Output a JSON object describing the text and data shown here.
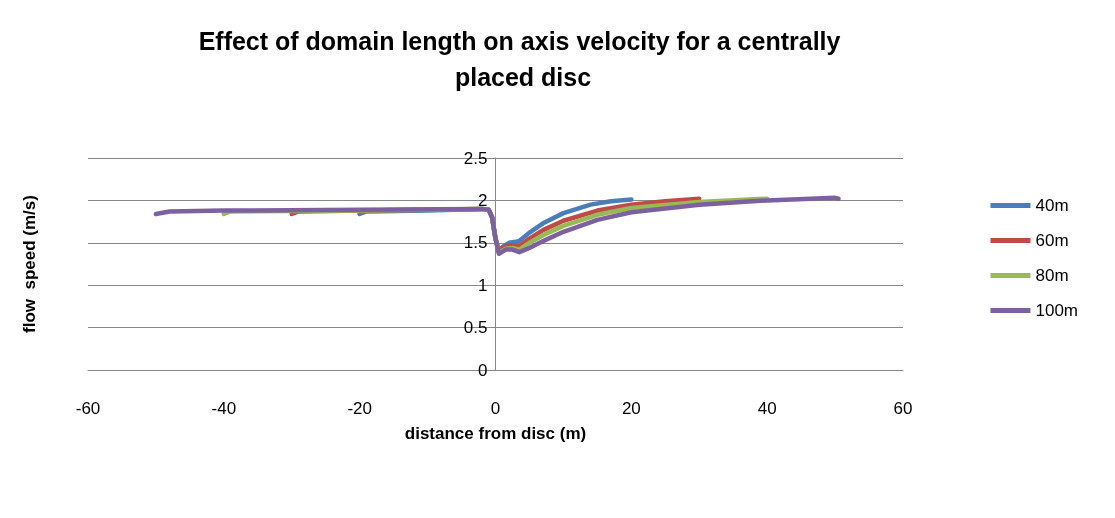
{
  "chart_data": {
    "type": "line",
    "title": "Effect of domain length on axis velocity for a centrally placed disc",
    "xlabel": "distance from disc (m)",
    "ylabel": "flow  speed (m/s)",
    "xlim": [
      -60,
      60
    ],
    "xticks": [
      -60,
      -40,
      -20,
      0,
      20,
      40,
      60
    ],
    "ylim": [
      0,
      2.5
    ],
    "yticks": [
      0,
      0.5,
      1,
      1.5,
      2,
      2.5
    ],
    "grid": "y",
    "legend": "right",
    "marker": "none",
    "line_style": "solid",
    "series": [
      {
        "name": "40m",
        "color": "#4a7ebb",
        "x": [
          -20,
          -19,
          -10,
          -2,
          -1,
          -0.5,
          0,
          0.5,
          1,
          2,
          3.5,
          5,
          7,
          10,
          14,
          17,
          20
        ],
        "values": [
          1.84,
          1.87,
          1.88,
          1.9,
          1.89,
          1.8,
          1.55,
          1.4,
          1.45,
          1.5,
          1.52,
          1.62,
          1.73,
          1.85,
          1.95,
          1.99,
          2.01
        ]
      },
      {
        "name": "60m",
        "color": "#be4b48",
        "x": [
          -30,
          -29,
          -20,
          -10,
          -2,
          -1,
          -0.5,
          0,
          0.5,
          1,
          2,
          3.5,
          5,
          7,
          10,
          15,
          20,
          25,
          30
        ],
        "values": [
          1.84,
          1.87,
          1.88,
          1.89,
          1.9,
          1.89,
          1.8,
          1.55,
          1.39,
          1.44,
          1.47,
          1.46,
          1.55,
          1.65,
          1.76,
          1.88,
          1.95,
          1.99,
          2.02
        ]
      },
      {
        "name": "80m",
        "color": "#98b954",
        "x": [
          -40,
          -39,
          -20,
          -10,
          -2,
          -1,
          -0.5,
          0,
          0.5,
          1.5,
          2.5,
          3.5,
          5,
          7,
          10,
          15,
          20,
          30,
          40
        ],
        "values": [
          1.84,
          1.87,
          1.88,
          1.89,
          1.9,
          1.89,
          1.8,
          1.55,
          1.38,
          1.43,
          1.44,
          1.42,
          1.5,
          1.59,
          1.7,
          1.83,
          1.91,
          1.98,
          2.02
        ]
      },
      {
        "name": "100m",
        "color": "#7d60a0",
        "x": [
          -50,
          -48,
          -40,
          -20,
          -2,
          -1,
          -0.5,
          0,
          0.5,
          1.5,
          2.5,
          3.5,
          5,
          7,
          10,
          15,
          20,
          30,
          40,
          50,
          50.5
        ],
        "values": [
          1.84,
          1.87,
          1.88,
          1.89,
          1.9,
          1.89,
          1.8,
          1.55,
          1.37,
          1.42,
          1.42,
          1.39,
          1.44,
          1.52,
          1.63,
          1.77,
          1.86,
          1.95,
          2.0,
          2.03,
          2.02
        ]
      }
    ]
  }
}
